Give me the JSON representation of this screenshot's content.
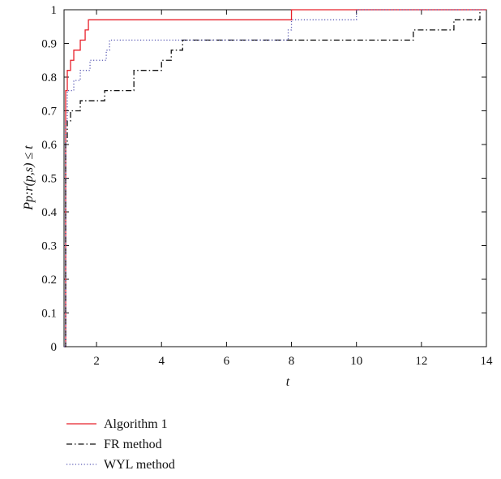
{
  "chart_data": {
    "type": "line",
    "title": "",
    "xlabel": "t",
    "ylabel": "Pp:r(p,s) ≤ t",
    "xlim": [
      1,
      14
    ],
    "ylim": [
      0,
      1
    ],
    "xticks": [
      2,
      4,
      6,
      8,
      10,
      12,
      14
    ],
    "yticks": [
      0,
      0.1,
      0.2,
      0.3,
      0.4,
      0.5,
      0.6,
      0.7,
      0.8,
      0.9,
      1
    ],
    "xtick_labels": [
      "2",
      "4",
      "6",
      "8",
      "10",
      "12",
      "14"
    ],
    "ytick_labels": [
      "0",
      "0.1",
      "0.2",
      "0.3",
      "0.4",
      "0.5",
      "0.6",
      "0.7",
      "0.8",
      "0.9",
      "1"
    ],
    "grid": false,
    "legend_position": "below",
    "step": true,
    "series": [
      {
        "name": "Algorithm 1",
        "color": "#e8202a",
        "dash": "solid",
        "x": [
          1.0,
          1.05,
          1.1,
          1.2,
          1.3,
          1.5,
          1.65,
          1.75,
          8.0,
          14.0
        ],
        "y": [
          0.0,
          0.76,
          0.82,
          0.85,
          0.88,
          0.91,
          0.94,
          0.97,
          1.0,
          1.0
        ]
      },
      {
        "name": "FR method",
        "color": "#111111",
        "dash": "dash-dot",
        "x": [
          1.0,
          1.05,
          1.1,
          1.2,
          1.5,
          2.0,
          2.25,
          3.15,
          4.0,
          4.3,
          4.65,
          11.75,
          13.0,
          13.8
        ],
        "y": [
          0.0,
          0.61,
          0.67,
          0.7,
          0.73,
          0.73,
          0.76,
          0.82,
          0.85,
          0.88,
          0.91,
          0.94,
          0.97,
          1.0
        ]
      },
      {
        "name": "WYL method",
        "color": "#5a5ab4",
        "dash": "dotted",
        "x": [
          1.0,
          1.05,
          1.1,
          1.3,
          1.5,
          1.8,
          2.3,
          2.4,
          7.9,
          8.0,
          10.0,
          14.0
        ],
        "y": [
          0.0,
          0.67,
          0.76,
          0.79,
          0.82,
          0.85,
          0.88,
          0.91,
          0.94,
          0.97,
          1.0,
          1.0
        ]
      }
    ]
  }
}
